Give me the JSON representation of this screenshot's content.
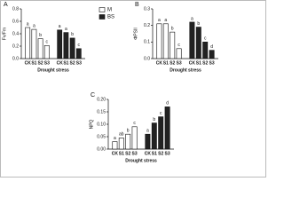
{
  "chart_data": [
    {
      "type": "bar",
      "panel": "A",
      "xlabel": "Drought stress",
      "ylabel": "Fv/Fm",
      "categories": [
        "CK",
        "S1",
        "S2",
        "S3"
      ],
      "series": [
        {
          "name": "M",
          "color": "#ffffff",
          "values": [
            0.5,
            0.47,
            0.32,
            0.21
          ],
          "letters": [
            "a",
            "a",
            "b",
            "c"
          ]
        },
        {
          "name": "BS",
          "color": "#222222",
          "values": [
            0.46,
            0.42,
            0.33,
            0.16
          ],
          "letters": [
            "a",
            "a",
            "b",
            "c"
          ]
        }
      ],
      "ylim": [
        0,
        0.8
      ],
      "yticks": [
        {
          "value": 0,
          "label": "0.0"
        },
        0.2,
        0.4,
        0.6,
        0.8
      ],
      "legend": true
    },
    {
      "type": "bar",
      "panel": "B",
      "xlabel": "Drought stress",
      "ylabel": "ΦPSII",
      "categories": [
        "CK",
        "S1",
        "S2",
        "S3"
      ],
      "series": [
        {
          "color": "#ffffff",
          "values": [
            0.21,
            0.21,
            0.16,
            0.06
          ],
          "letters": [
            "a",
            "a",
            "b",
            "c"
          ]
        },
        {
          "color": "#222222",
          "values": [
            0.22,
            0.19,
            0.1,
            0.05
          ],
          "letters": [
            "a",
            "b",
            "c",
            "d"
          ]
        }
      ],
      "ylim": [
        0,
        0.3
      ],
      "yticks": [
        {
          "value": 0,
          "label": "0.0"
        },
        0.1,
        0.2,
        0.3
      ]
    },
    {
      "type": "bar",
      "panel": "C",
      "xlabel": "Drought stress",
      "ylabel": "NPQ",
      "categories": [
        "CK",
        "S1",
        "S2",
        "S3"
      ],
      "series": [
        {
          "color": "#ffffff",
          "values": [
            0.03,
            0.045,
            0.06,
            0.09
          ],
          "letters": [
            "a",
            "ab",
            "b",
            "c"
          ]
        },
        {
          "color": "#222222",
          "values": [
            0.06,
            0.105,
            0.13,
            0.17
          ],
          "letters": [
            "a",
            "b",
            "c",
            "d"
          ]
        }
      ],
      "ylim": [
        0,
        0.2
      ],
      "yticks": [
        {
          "value": 0,
          "label": "0.00"
        },
        0.05,
        {
          "value": 0.1,
          "label": "0.10"
        },
        0.15,
        {
          "value": 0.2,
          "label": "0.20"
        }
      ]
    }
  ]
}
